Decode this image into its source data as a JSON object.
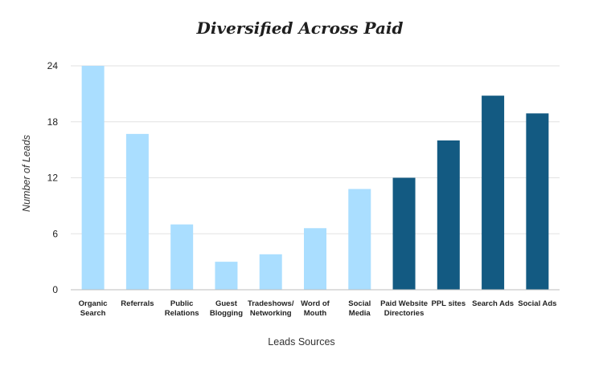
{
  "chart_data": {
    "type": "bar",
    "title": "Diversified Across Paid",
    "xlabel": "Leads Sources",
    "ylabel": "Number of Leads",
    "ylim": [
      0,
      24
    ],
    "yticks": [
      0,
      6,
      12,
      18,
      24
    ],
    "grid": true,
    "categories": [
      [
        "Organic",
        "Search"
      ],
      [
        "Referrals"
      ],
      [
        "Public",
        "Relations"
      ],
      [
        "Guest",
        "Blogging"
      ],
      [
        "Tradeshows/",
        "Networking"
      ],
      [
        "Word of",
        "Mouth"
      ],
      [
        "Social",
        "Media"
      ],
      [
        "Paid Website",
        "Directories"
      ],
      [
        "PPL sites"
      ],
      [
        "Search Ads"
      ],
      [
        "Social Ads"
      ]
    ],
    "values": [
      24,
      16.7,
      7,
      3,
      3.8,
      6.6,
      10.8,
      12,
      16,
      20.8,
      18.9
    ],
    "colors": [
      "#aadeff",
      "#aadeff",
      "#aadeff",
      "#aadeff",
      "#aadeff",
      "#aadeff",
      "#aadeff",
      "#135a82",
      "#135a82",
      "#135a82",
      "#135a82"
    ]
  }
}
